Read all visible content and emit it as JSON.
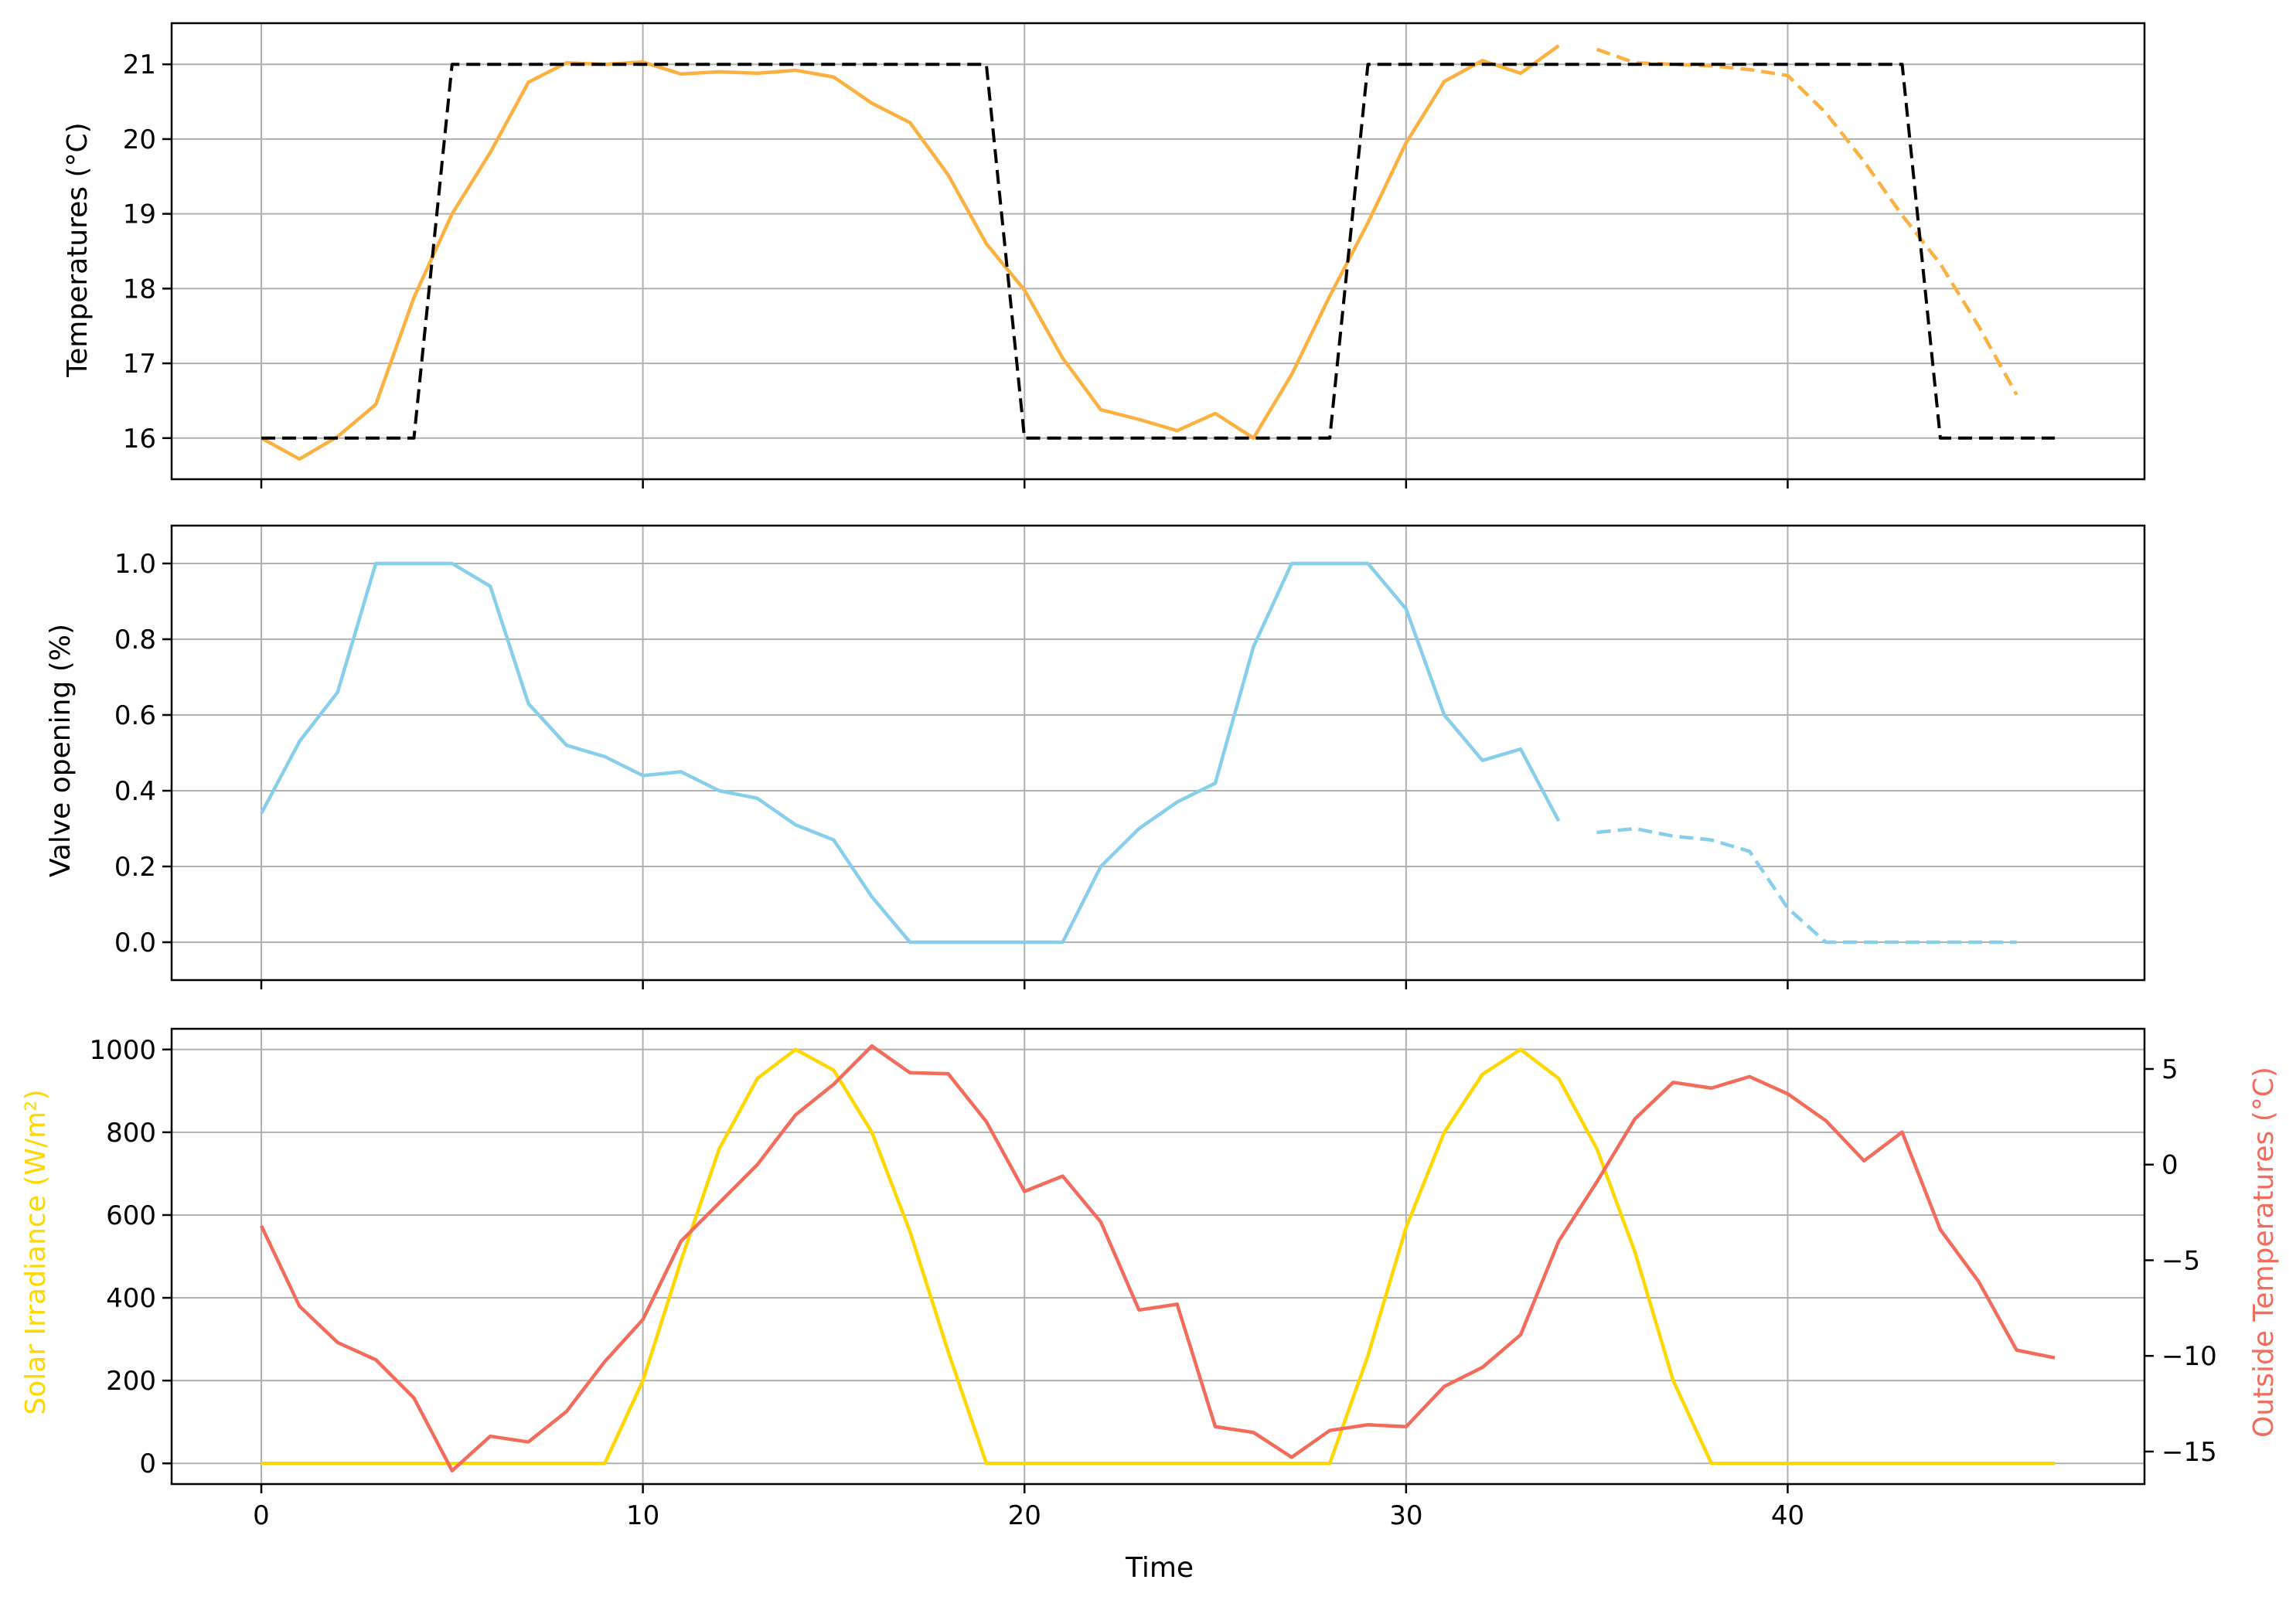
{
  "chart_data": [
    {
      "type": "line",
      "ylabel": "Temperatures (°C)",
      "xlim": [
        -2.35,
        49.35
      ],
      "ylim": [
        15.45,
        21.55
      ],
      "yticks": [
        16,
        17,
        18,
        19,
        20,
        21
      ],
      "xticks": [
        0,
        10,
        20,
        30,
        40
      ],
      "show_xticklabels": false,
      "grid": true,
      "series": [
        {
          "color": "#FBB040",
          "dash": "solid",
          "x": [
            0,
            1,
            2,
            3,
            4,
            5,
            6,
            7,
            8,
            9,
            10,
            11,
            12,
            13,
            14,
            15,
            16,
            17,
            18,
            19,
            20,
            21,
            22,
            23,
            24,
            25,
            26,
            27,
            28,
            29,
            30,
            31,
            32,
            33,
            34
          ],
          "values": [
            16.0,
            15.72,
            16.02,
            16.45,
            17.88,
            19.0,
            19.82,
            20.76,
            21.02,
            21.0,
            21.03,
            20.87,
            20.9,
            20.88,
            20.92,
            20.83,
            20.48,
            20.22,
            19.52,
            18.6,
            17.98,
            17.07,
            16.38,
            16.25,
            16.1,
            16.33,
            16.0,
            16.85,
            17.9,
            18.88,
            19.95,
            20.77,
            21.05,
            20.88,
            21.25
          ]
        },
        {
          "color": "#FBB040",
          "dash": "dashed",
          "x": [
            35,
            36,
            37,
            38,
            39,
            40,
            41,
            42,
            43,
            44,
            45,
            46
          ],
          "values": [
            21.2,
            21.02,
            21.0,
            20.98,
            20.93,
            20.85,
            20.35,
            19.7,
            18.98,
            18.33,
            17.5,
            16.58
          ]
        },
        {
          "color": "#000000",
          "dash": "dashed",
          "x": [
            0,
            4,
            5,
            19,
            20,
            28,
            29,
            43,
            44,
            47
          ],
          "values": [
            16,
            16,
            21,
            21,
            16,
            16,
            21,
            21,
            16,
            16
          ]
        }
      ]
    },
    {
      "type": "line",
      "ylabel": "Valve opening (%)",
      "xlim": [
        -2.35,
        49.35
      ],
      "ylim": [
        -0.1,
        1.1
      ],
      "yticks": [
        "0.0",
        "0.2",
        "0.4",
        "0.6",
        "0.8",
        "1.0"
      ],
      "xticks": [
        0,
        10,
        20,
        30,
        40
      ],
      "show_xticklabels": false,
      "grid": true,
      "series": [
        {
          "color": "#87CEEB",
          "dash": "solid",
          "x": [
            0,
            1,
            2,
            3,
            4,
            5,
            6,
            7,
            8,
            9,
            10,
            11,
            12,
            13,
            14,
            15,
            16,
            17,
            18,
            19,
            20,
            21,
            22,
            23,
            24,
            25,
            26,
            27,
            28,
            29,
            30,
            31,
            32,
            33,
            34
          ],
          "values": [
            0.34,
            0.53,
            0.66,
            1.0,
            1.0,
            1.0,
            0.94,
            0.63,
            0.52,
            0.49,
            0.44,
            0.45,
            0.4,
            0.38,
            0.31,
            0.27,
            0.12,
            0.0,
            0.0,
            0.0,
            0.0,
            0.0,
            0.2,
            0.3,
            0.37,
            0.42,
            0.78,
            1.0,
            1.0,
            1.0,
            0.88,
            0.6,
            0.48,
            0.51,
            0.32
          ]
        },
        {
          "color": "#87CEEB",
          "dash": "dashed",
          "x": [
            35,
            36,
            37,
            38,
            39,
            40,
            41,
            42,
            43,
            44,
            45,
            46
          ],
          "values": [
            0.29,
            0.3,
            0.28,
            0.27,
            0.24,
            0.09,
            0.0,
            0.0,
            0.0,
            0.0,
            0.0,
            0.0
          ]
        }
      ]
    },
    {
      "type": "line",
      "xlabel": "Time",
      "ylabel": "Solar Irradiance (W/m²)",
      "ylabel_right": "Outside Temperatures (°C)",
      "xlim": [
        -2.35,
        49.35
      ],
      "ylim": [
        -50,
        1050
      ],
      "ylim_right": [
        -16.7,
        7.1
      ],
      "yticks": [
        0,
        200,
        400,
        600,
        800,
        1000
      ],
      "yticks_right": [
        -15,
        -10,
        -5,
        0,
        5
      ],
      "xticks": [
        0,
        10,
        20,
        30,
        40
      ],
      "show_xticklabels": true,
      "grid": true,
      "series": [
        {
          "color": "#FFD700",
          "dash": "solid",
          "axis": "left",
          "x": [
            0,
            1,
            2,
            3,
            4,
            5,
            6,
            7,
            8,
            9,
            10,
            11,
            12,
            13,
            14,
            15,
            16,
            17,
            18,
            19,
            20,
            21,
            22,
            23,
            24,
            25,
            26,
            27,
            28,
            29,
            30,
            31,
            32,
            33,
            34,
            35,
            36,
            37,
            38,
            39,
            40,
            41,
            42,
            43,
            44,
            45,
            46,
            47
          ],
          "values": [
            0,
            0,
            0,
            0,
            0,
            0,
            0,
            0,
            0,
            0,
            200,
            490,
            760,
            930,
            1000,
            950,
            800,
            560,
            270,
            0,
            0,
            0,
            0,
            0,
            0,
            0,
            0,
            0,
            0,
            260,
            570,
            800,
            940,
            1000,
            930,
            760,
            510,
            200,
            0,
            0,
            0,
            0,
            0,
            0,
            0,
            0,
            0,
            0
          ]
        },
        {
          "color": "#F26B5B",
          "dash": "solid",
          "axis": "right",
          "x": [
            0,
            1,
            2,
            3,
            4,
            5,
            6,
            7,
            8,
            9,
            10,
            11,
            12,
            13,
            14,
            15,
            16,
            17,
            18,
            19,
            20,
            21,
            22,
            23,
            24,
            25,
            26,
            27,
            28,
            29,
            30,
            31,
            32,
            33,
            34,
            35,
            36,
            37,
            38,
            39,
            40,
            41,
            42,
            43,
            44,
            45,
            46,
            47
          ],
          "values": [
            -3.2,
            -7.4,
            -9.3,
            -10.2,
            -12.2,
            -16.0,
            -14.2,
            -14.5,
            -12.9,
            -10.3,
            -8.1,
            -4.0,
            -2.0,
            0.0,
            2.6,
            4.2,
            6.2,
            4.8,
            4.75,
            2.25,
            -1.4,
            -0.6,
            -3.0,
            -7.6,
            -7.3,
            -13.7,
            -14.0,
            -15.3,
            -13.9,
            -13.6,
            -13.7,
            -11.6,
            -10.6,
            -8.9,
            -4.0,
            -0.9,
            2.4,
            4.3,
            4.0,
            4.6,
            3.7,
            2.3,
            0.2,
            1.7,
            -3.4,
            -6.1,
            -9.7,
            -10.1
          ]
        }
      ]
    }
  ]
}
